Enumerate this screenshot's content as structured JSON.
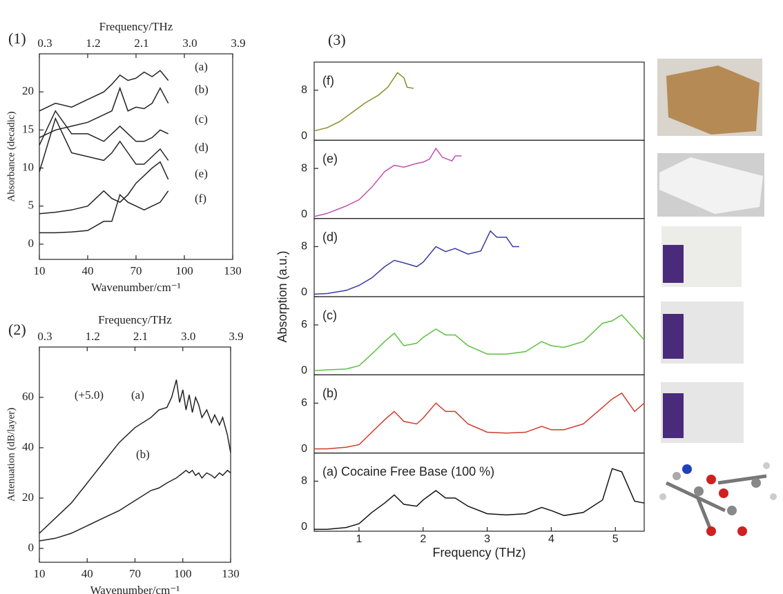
{
  "chart_data": [
    {
      "type": "line",
      "panel_label": "(1)",
      "xlabel": "Wavenumber/cm⁻¹",
      "ylabel": "Absorbance (decadic)",
      "x2label": "Frequency/THz",
      "xlim": [
        10,
        130
      ],
      "xticks": [
        10,
        40,
        70,
        100,
        130
      ],
      "x2lim": [
        0.3,
        3.9
      ],
      "x2ticks": [
        0.3,
        1.2,
        2.1,
        {
          "value": 3,
          "label": "3.0"
        },
        3.9
      ],
      "ylim": [
        -2,
        25
      ],
      "yticks": [
        0,
        5,
        10,
        15,
        20
      ],
      "x": [
        10,
        20,
        30,
        40,
        50,
        55,
        60,
        65,
        70,
        75,
        80,
        85,
        90
      ],
      "series": [
        {
          "name": "(a)",
          "color": "#222222",
          "values": [
            17.5,
            18.5,
            18,
            19,
            20,
            21,
            22.2,
            21.5,
            21.8,
            22.6,
            22,
            22.8,
            21.5
          ]
        },
        {
          "name": "(b)",
          "color": "#222222",
          "values": [
            14,
            15,
            15.5,
            16,
            17,
            17.5,
            20.5,
            17.5,
            18,
            17.8,
            18.5,
            20.5,
            18.5
          ]
        },
        {
          "name": "(c)",
          "color": "#222222",
          "values": [
            13,
            17.5,
            14.5,
            14.5,
            13.5,
            14.5,
            15.5,
            14.5,
            13.5,
            13.5,
            14,
            15,
            14.5
          ]
        },
        {
          "name": "(d)",
          "color": "#222222",
          "values": [
            9.5,
            16.5,
            12,
            11.5,
            11,
            12,
            13.5,
            12,
            10.5,
            10.5,
            11.5,
            12.5,
            11
          ]
        },
        {
          "name": "(e)",
          "color": "#222222",
          "values": [
            4,
            4.2,
            4.5,
            5,
            7,
            6,
            5.5,
            6.5,
            8,
            9,
            10,
            10.8,
            8.5
          ]
        },
        {
          "name": "(f)",
          "color": "#222222",
          "values": [
            1.5,
            1.5,
            1.6,
            1.8,
            3,
            3,
            6.5,
            5.5,
            5,
            4.5,
            5,
            5.5,
            7
          ]
        }
      ]
    },
    {
      "type": "line",
      "panel_label": "(2)",
      "xlabel": "Wavenumber/cm⁻¹",
      "ylabel": "Attenuation (dB/layer)",
      "x2label": "Frequency/THz",
      "annotation": "(+5.0)",
      "xlim": [
        10,
        130
      ],
      "xticks": [
        10,
        40,
        70,
        100,
        130
      ],
      "x2lim": [
        0.3,
        3.9
      ],
      "x2ticks": [
        0.3,
        1.2,
        2.1,
        {
          "value": 3,
          "label": "3.0"
        },
        3.9
      ],
      "ylim": [
        -5.5,
        80
      ],
      "yticks": [
        0,
        20,
        40,
        60
      ],
      "x": [
        10,
        20,
        30,
        40,
        50,
        60,
        70,
        80,
        85,
        90,
        93,
        96,
        98,
        100,
        102,
        104,
        106,
        108,
        110,
        112,
        115,
        118,
        120,
        123,
        125,
        128,
        130
      ],
      "series": [
        {
          "name": "(a)",
          "color": "#222222",
          "values": [
            6,
            12,
            18,
            26,
            34,
            42,
            48,
            52,
            55,
            56,
            60,
            67,
            58,
            63,
            55,
            61,
            54,
            60,
            57,
            52,
            55,
            50,
            53,
            49,
            52,
            45,
            38
          ]
        },
        {
          "name": "(b)",
          "color": "#222222",
          "values": [
            3,
            4,
            6,
            9,
            12,
            15,
            19,
            23,
            24,
            26,
            27,
            28,
            29,
            30,
            31,
            30,
            31,
            29,
            30,
            28,
            30,
            29,
            28,
            30,
            29,
            31,
            30
          ]
        }
      ]
    },
    {
      "type": "stacked-line",
      "panel_label": "(3)",
      "xlabel": "Frequency (THz)",
      "ylabel": "Absorption (a.u.)",
      "xlim": [
        0.3,
        5.45
      ],
      "xticks": [
        1,
        2,
        3,
        4,
        5
      ],
      "panels": [
        {
          "label": "(f)",
          "color": "#8a8a2a",
          "ylim": [
            0,
            12.5
          ],
          "yticks": [
            0,
            8
          ],
          "x": [
            0.3,
            0.5,
            0.7,
            0.9,
            1.1,
            1.3,
            1.45,
            1.6,
            1.7,
            1.75,
            1.85
          ],
          "values": [
            1.5,
            2,
            3,
            4.5,
            6,
            7.2,
            8.5,
            10.8,
            10,
            8.5,
            8.3
          ]
        },
        {
          "label": "(e)",
          "color": "#c050b0",
          "ylim": [
            0,
            12.5
          ],
          "yticks": [
            0,
            8
          ],
          "x": [
            0.3,
            0.5,
            0.8,
            1.0,
            1.2,
            1.4,
            1.55,
            1.7,
            1.9,
            2.0,
            2.1,
            2.2,
            2.3,
            2.45,
            2.5,
            2.6
          ],
          "values": [
            0.3,
            0.8,
            2,
            3,
            5,
            7.5,
            8.5,
            8.2,
            8.8,
            9,
            9.5,
            11.2,
            9.8,
            9.2,
            10,
            10
          ]
        },
        {
          "label": "(d)",
          "color": "#3a3aa0",
          "ylim": [
            0,
            12.5
          ],
          "yticks": [
            0,
            8
          ],
          "x": [
            0.3,
            0.5,
            0.8,
            1.0,
            1.2,
            1.4,
            1.55,
            1.7,
            1.9,
            2.0,
            2.2,
            2.35,
            2.5,
            2.7,
            2.9,
            3.05,
            3.15,
            3.3,
            3.4,
            3.5
          ],
          "values": [
            0.4,
            0.5,
            1,
            1.8,
            3,
            4.8,
            5.8,
            5.4,
            4.8,
            5.5,
            8,
            7.2,
            7.7,
            6.8,
            7.3,
            10.5,
            9.5,
            9.5,
            8,
            8
          ]
        },
        {
          "label": "(c)",
          "color": "#5cc040",
          "ylim": [
            0,
            9.4
          ],
          "yticks": [
            0,
            6
          ],
          "x": [
            0.3,
            0.5,
            0.8,
            1.0,
            1.2,
            1.4,
            1.55,
            1.7,
            1.9,
            2.0,
            2.2,
            2.35,
            2.5,
            2.7,
            3.0,
            3.3,
            3.6,
            3.85,
            4.0,
            4.2,
            4.5,
            4.8,
            4.95,
            5.1,
            5.3,
            5.45
          ],
          "values": [
            0.5,
            0.6,
            0.7,
            1.1,
            2.5,
            4,
            5,
            3.5,
            3.8,
            4.5,
            5.5,
            4.8,
            4.8,
            3.5,
            2.5,
            2.5,
            2.8,
            4,
            3.5,
            3.3,
            4,
            6.2,
            6.5,
            7.2,
            5.5,
            4.2
          ]
        },
        {
          "label": "(b)",
          "color": "#d03a2a",
          "ylim": [
            0,
            9.4
          ],
          "yticks": [
            0,
            6
          ],
          "x": [
            0.3,
            0.5,
            0.8,
            1.0,
            1.2,
            1.4,
            1.55,
            1.7,
            1.9,
            2.0,
            2.2,
            2.35,
            2.5,
            2.7,
            3.0,
            3.3,
            3.6,
            3.85,
            4.0,
            4.2,
            4.5,
            4.8,
            4.95,
            5.1,
            5.3,
            5.45
          ],
          "values": [
            0.5,
            0.5,
            0.7,
            1,
            2.5,
            4,
            5,
            3.8,
            3.5,
            4.2,
            6,
            5,
            5,
            3.5,
            2.5,
            2.4,
            2.5,
            3.2,
            2.8,
            2.8,
            3.5,
            5.5,
            6.5,
            7.2,
            5,
            6
          ]
        },
        {
          "label": "(a) Cocaine Free Base (100 %)",
          "color": "#111111",
          "ylim": [
            0,
            12.5
          ],
          "yticks": [
            0,
            8
          ],
          "x": [
            0.3,
            0.5,
            0.8,
            1.0,
            1.2,
            1.4,
            1.55,
            1.7,
            1.9,
            2.0,
            2.2,
            2.35,
            2.5,
            2.7,
            3.0,
            3.3,
            3.6,
            3.85,
            4.0,
            4.2,
            4.5,
            4.8,
            4.95,
            5.1,
            5.3,
            5.45
          ],
          "values": [
            0.3,
            0.3,
            0.6,
            1.2,
            3,
            4.5,
            5.8,
            4.3,
            4,
            5,
            6.5,
            5.3,
            5.3,
            4,
            2.8,
            2.6,
            2.8,
            3.8,
            3.3,
            2.5,
            3,
            5,
            10,
            9.5,
            4.8,
            4.5
          ]
        }
      ]
    }
  ]
}
